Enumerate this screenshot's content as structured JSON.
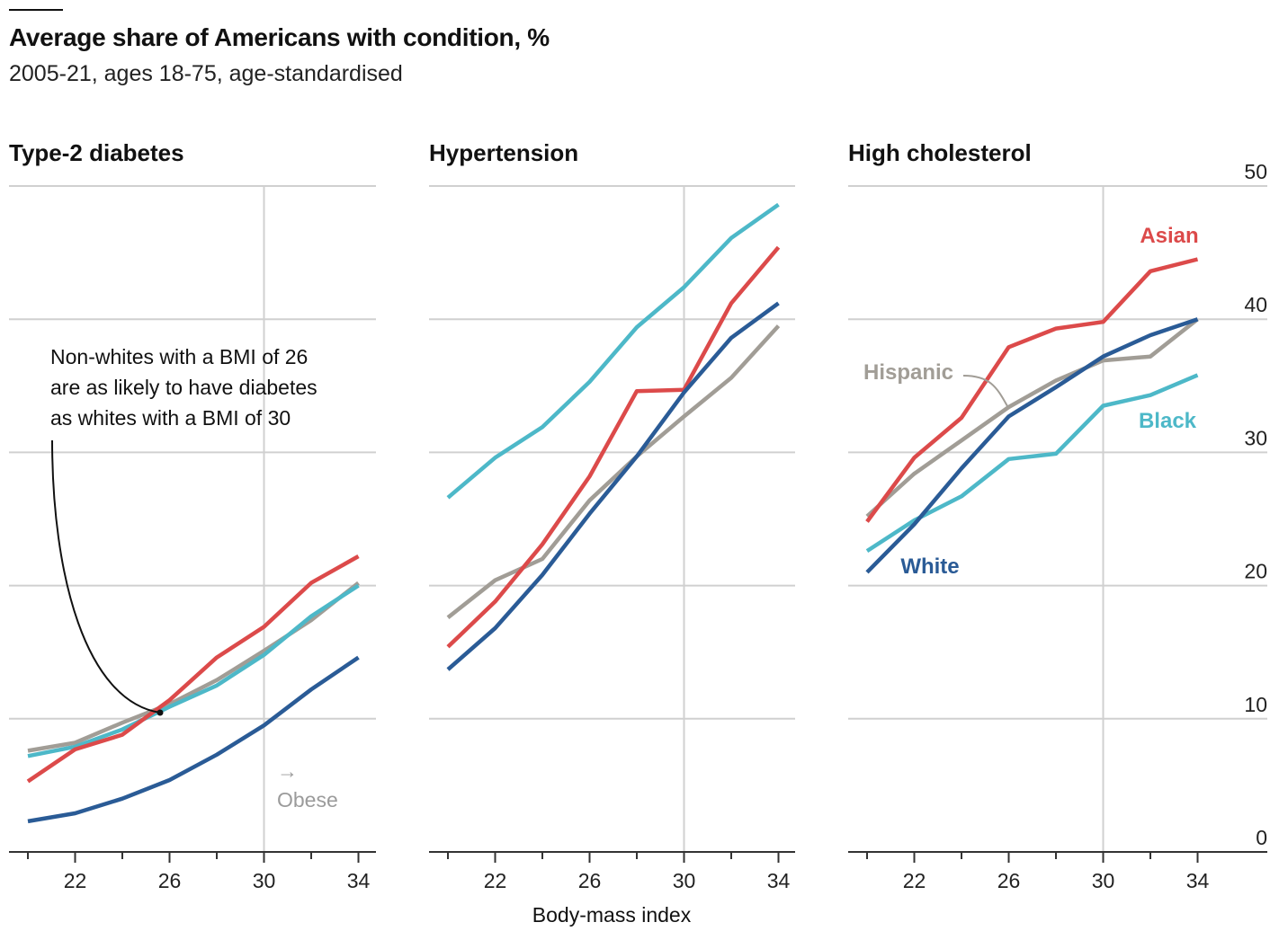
{
  "header": {
    "title": "Average share of Americans with condition, %",
    "subtitle": "2005-21, ages 18-75, age-standardised"
  },
  "colors": {
    "White": "#2a5b96",
    "Black": "#4db8c8",
    "Hispanic": "#a19d96",
    "Asian": "#dc4a4a",
    "grid": "#d0d0d0",
    "axis": "#333333"
  },
  "annotations": {
    "diabetes_note": [
      "Non-whites with a BMI of 26",
      "are as likely to have diabetes",
      "as whites with a BMI of 30"
    ],
    "obese_arrow": "→",
    "obese": "Obese"
  },
  "chart_data": [
    {
      "type": "line",
      "title": "Type-2 diabetes",
      "xlabel": "",
      "ylabel": "",
      "x": [
        20,
        22,
        24,
        26,
        28,
        30,
        32,
        34
      ],
      "xticks": [
        22,
        26,
        30,
        34
      ],
      "ylim": [
        0,
        50
      ],
      "grid": true,
      "series": [
        {
          "name": "Hispanic",
          "values": [
            7.6,
            8.2,
            9.7,
            11.1,
            12.9,
            15.1,
            17.4,
            20.2
          ]
        },
        {
          "name": "Black",
          "values": [
            7.2,
            7.9,
            9.2,
            10.9,
            12.5,
            14.8,
            17.7,
            20.0
          ]
        },
        {
          "name": "Asian",
          "values": [
            5.3,
            7.7,
            8.8,
            11.4,
            14.6,
            16.9,
            20.2,
            22.2
          ]
        },
        {
          "name": "White",
          "values": [
            2.3,
            2.9,
            4.0,
            5.4,
            7.3,
            9.5,
            12.2,
            14.6
          ]
        }
      ]
    },
    {
      "type": "line",
      "title": "Hypertension",
      "xlabel": "Body-mass index",
      "ylabel": "",
      "x": [
        20,
        22,
        24,
        26,
        28,
        30,
        32,
        34
      ],
      "xticks": [
        22,
        26,
        30,
        34
      ],
      "ylim": [
        0,
        50
      ],
      "grid": true,
      "series": [
        {
          "name": "Black",
          "values": [
            26.6,
            29.6,
            31.9,
            35.3,
            39.4,
            42.4,
            46.1,
            48.6
          ]
        },
        {
          "name": "Hispanic",
          "values": [
            17.6,
            20.4,
            22.0,
            26.4,
            29.7,
            32.7,
            35.6,
            39.5
          ]
        },
        {
          "name": "Asian",
          "values": [
            15.4,
            18.8,
            23.1,
            28.2,
            34.6,
            34.7,
            41.2,
            45.4
          ]
        },
        {
          "name": "White",
          "values": [
            13.7,
            16.8,
            20.8,
            25.4,
            29.7,
            34.5,
            38.6,
            41.2
          ]
        }
      ]
    },
    {
      "type": "line",
      "title": "High cholesterol",
      "xlabel": "",
      "ylabel": "",
      "x": [
        20,
        22,
        24,
        26,
        28,
        30,
        32,
        34
      ],
      "xticks": [
        22,
        26,
        30,
        34
      ],
      "ylim": [
        0,
        50
      ],
      "yticks": [
        0,
        10,
        20,
        30,
        40,
        50
      ],
      "grid": true,
      "series": [
        {
          "name": "Hispanic",
          "values": [
            25.2,
            28.4,
            30.9,
            33.4,
            35.4,
            36.9,
            37.2,
            40.0
          ]
        },
        {
          "name": "Black",
          "values": [
            22.6,
            24.9,
            26.7,
            29.5,
            29.9,
            33.5,
            34.3,
            35.8
          ]
        },
        {
          "name": "Asian",
          "values": [
            24.8,
            29.6,
            32.6,
            37.9,
            39.3,
            39.8,
            43.6,
            44.5
          ]
        },
        {
          "name": "White",
          "values": [
            21.0,
            24.6,
            28.8,
            32.7,
            34.9,
            37.2,
            38.8,
            40.0
          ]
        }
      ]
    }
  ]
}
